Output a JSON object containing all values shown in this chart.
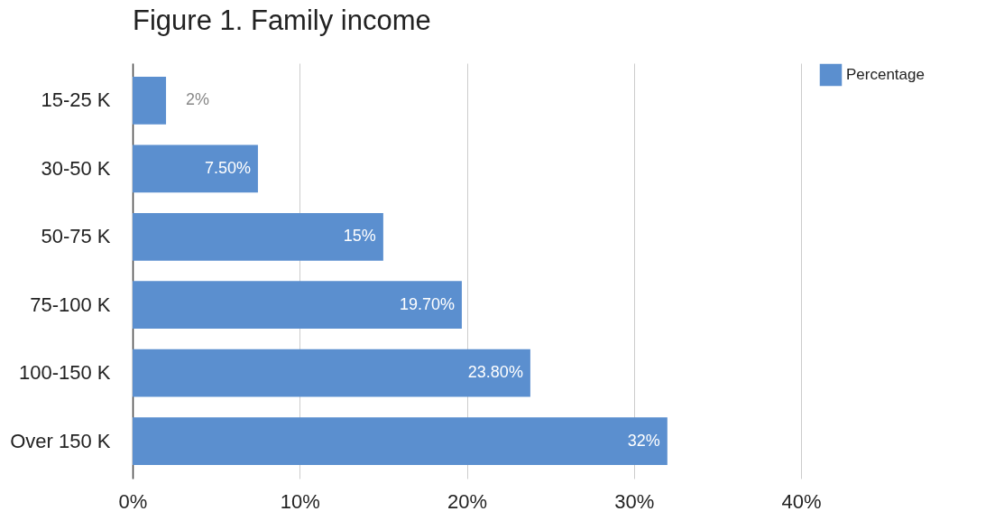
{
  "chart_data": {
    "type": "bar",
    "orientation": "horizontal",
    "title": "Figure 1. Family income",
    "categories": [
      "15-25 K",
      "30-50 K",
      "50-75 K",
      "75-100 K",
      "100-150 K",
      "Over 150 K"
    ],
    "series": [
      {
        "name": "Percentage",
        "color": "#5b8fcf",
        "values": [
          2,
          7.5,
          15,
          19.7,
          23.8,
          32
        ],
        "value_labels": [
          "2%",
          "7.50%",
          "15%",
          "19.70%",
          "23.80%",
          "32%"
        ]
      }
    ],
    "xlim": [
      0,
      40
    ],
    "xticks": [
      {
        "value": 0,
        "label": "0%"
      },
      {
        "value": 10,
        "label": "10%"
      },
      {
        "value": 20,
        "label": "20%"
      },
      {
        "value": 30,
        "label": "30%"
      },
      {
        "value": 40,
        "label": "40%"
      }
    ],
    "grid": "x",
    "legend": "top right"
  }
}
